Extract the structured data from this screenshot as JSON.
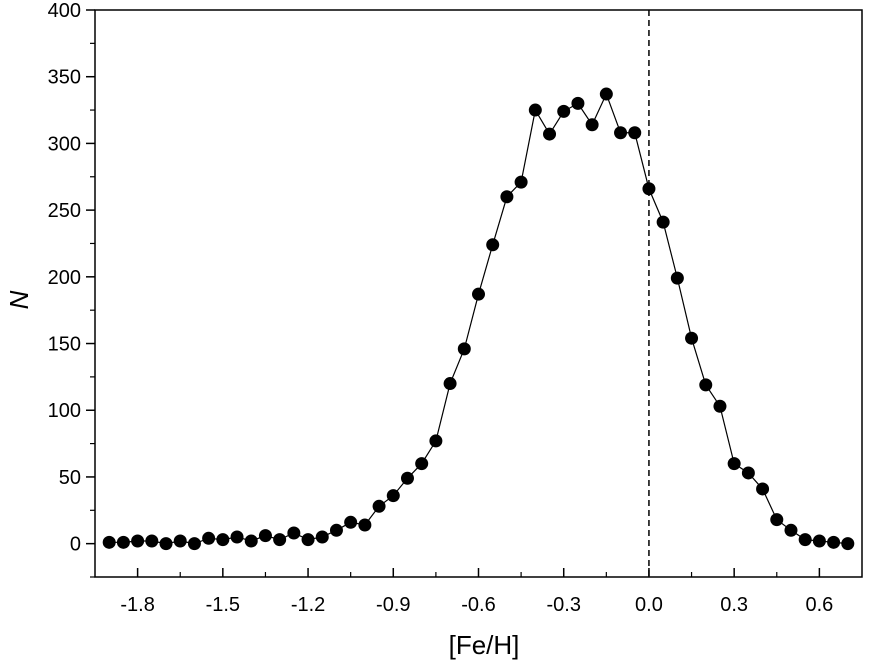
{
  "chart_data": {
    "type": "line",
    "title": "",
    "xlabel": "[Fe/H]",
    "ylabel": "N",
    "xlim": [
      -1.95,
      0.75
    ],
    "ylim": [
      -25,
      400
    ],
    "x_ticks": [
      -1.8,
      -1.5,
      -1.2,
      -0.9,
      -0.6,
      -0.3,
      0.0,
      0.3,
      0.6
    ],
    "x_tick_labels": [
      "-1.8",
      "-1.5",
      "-1.2",
      "-0.9",
      "-0.6",
      "-0.3",
      "0.0",
      "0.3",
      "0.6"
    ],
    "y_ticks": [
      0,
      50,
      100,
      150,
      200,
      250,
      300,
      350,
      400
    ],
    "y_tick_labels": [
      "0",
      "50",
      "100",
      "150",
      "200",
      "250",
      "300",
      "350",
      "400"
    ],
    "reference_line": {
      "x": 0.0,
      "style": "dashed"
    },
    "grid": false,
    "series": [
      {
        "marker": "circle",
        "color": "#000000",
        "x": [
          -1.9,
          -1.85,
          -1.8,
          -1.75,
          -1.7,
          -1.65,
          -1.6,
          -1.55,
          -1.5,
          -1.45,
          -1.4,
          -1.35,
          -1.3,
          -1.25,
          -1.2,
          -1.15,
          -1.1,
          -1.05,
          -1.0,
          -0.95,
          -0.9,
          -0.85,
          -0.8,
          -0.75,
          -0.7,
          -0.65,
          -0.6,
          -0.55,
          -0.5,
          -0.45,
          -0.4,
          -0.35,
          -0.3,
          -0.25,
          -0.2,
          -0.15,
          -0.1,
          -0.05,
          0.0,
          0.05,
          0.1,
          0.15,
          0.2,
          0.25,
          0.3,
          0.35,
          0.4,
          0.45,
          0.5,
          0.55,
          0.6,
          0.65,
          0.7
        ],
        "y": [
          1,
          1,
          2,
          2,
          0,
          2,
          0,
          4,
          3,
          5,
          2,
          6,
          3,
          8,
          3,
          5,
          10,
          16,
          14,
          28,
          36,
          49,
          60,
          77,
          120,
          146,
          187,
          224,
          260,
          271,
          325,
          307,
          324,
          330,
          314,
          337,
          308,
          308,
          266,
          241,
          199,
          154,
          119,
          103,
          60,
          53,
          41,
          18,
          10,
          3,
          2,
          1,
          0
        ]
      }
    ]
  }
}
